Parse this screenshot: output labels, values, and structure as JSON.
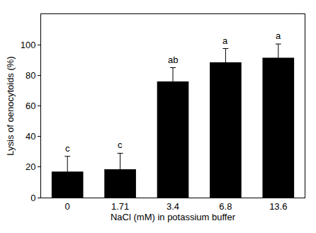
{
  "chart_data": {
    "type": "bar",
    "x_label": "NaCl (mM) in potassium buffer",
    "y_label": "Lysis of oenocytoids (%)",
    "categories": [
      "0",
      "1.71",
      "3.4",
      "6.8",
      "13.6"
    ],
    "values": [
      17,
      18.5,
      76,
      88.5,
      91.5
    ],
    "errors": [
      10,
      10.5,
      9,
      9,
      9
    ],
    "annotations": [
      "c",
      "c",
      "ab",
      "a",
      "a"
    ],
    "color": "#000000",
    "ylim": [
      0,
      120
    ],
    "yticks": [
      0,
      20,
      40,
      60,
      80,
      100
    ],
    "grid": false
  }
}
